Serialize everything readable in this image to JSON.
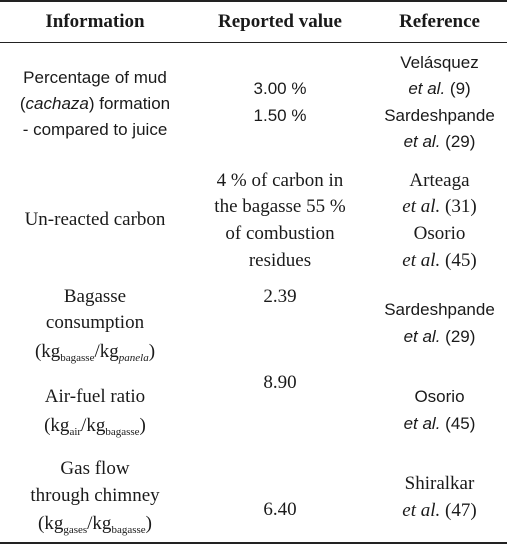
{
  "table": {
    "columns": [
      "Information",
      "Reported value",
      "Reference"
    ],
    "rows": [
      {
        "information": [
          "Percentage of mud",
          "(",
          "cachaza",
          ") formation",
          "- compared to juice"
        ],
        "reported_value": [
          "3.00 %",
          "1.50 %"
        ],
        "reference": [
          "Velásquez",
          "et al.",
          "(9)",
          "Sardeshpande",
          "et al.",
          "(29)"
        ]
      },
      {
        "information": [
          "Un-reacted carbon"
        ],
        "reported_value": [
          "4 % of carbon in",
          "the bagasse 55 %",
          "of combustion",
          "residues"
        ],
        "reference": [
          "Arteaga",
          "et al.",
          "(31)",
          "Osorio",
          "et al.",
          "(45)"
        ]
      },
      {
        "information": [
          "Bagasse",
          "consumption",
          "(kg",
          "bagasse",
          "/kg",
          "panela",
          ")"
        ],
        "reported_value": [
          "2.39"
        ],
        "reference": [
          "Sardeshpande",
          "et al.",
          "(29)"
        ]
      },
      {
        "information": [
          "Air-fuel ratio",
          "(kg",
          "air",
          "/kg",
          "bagasse",
          ")"
        ],
        "reported_value": [
          "8.90"
        ],
        "reference": [
          "Osorio",
          "et al.",
          "(45)"
        ]
      },
      {
        "information": [
          "Gas flow",
          "through chimney",
          "(kg",
          "gases",
          "/kg",
          "bagasse",
          ")"
        ],
        "reported_value": [
          "6.40"
        ],
        "reference": [
          "Shiralkar",
          "et al.",
          "(47)"
        ]
      }
    ]
  }
}
